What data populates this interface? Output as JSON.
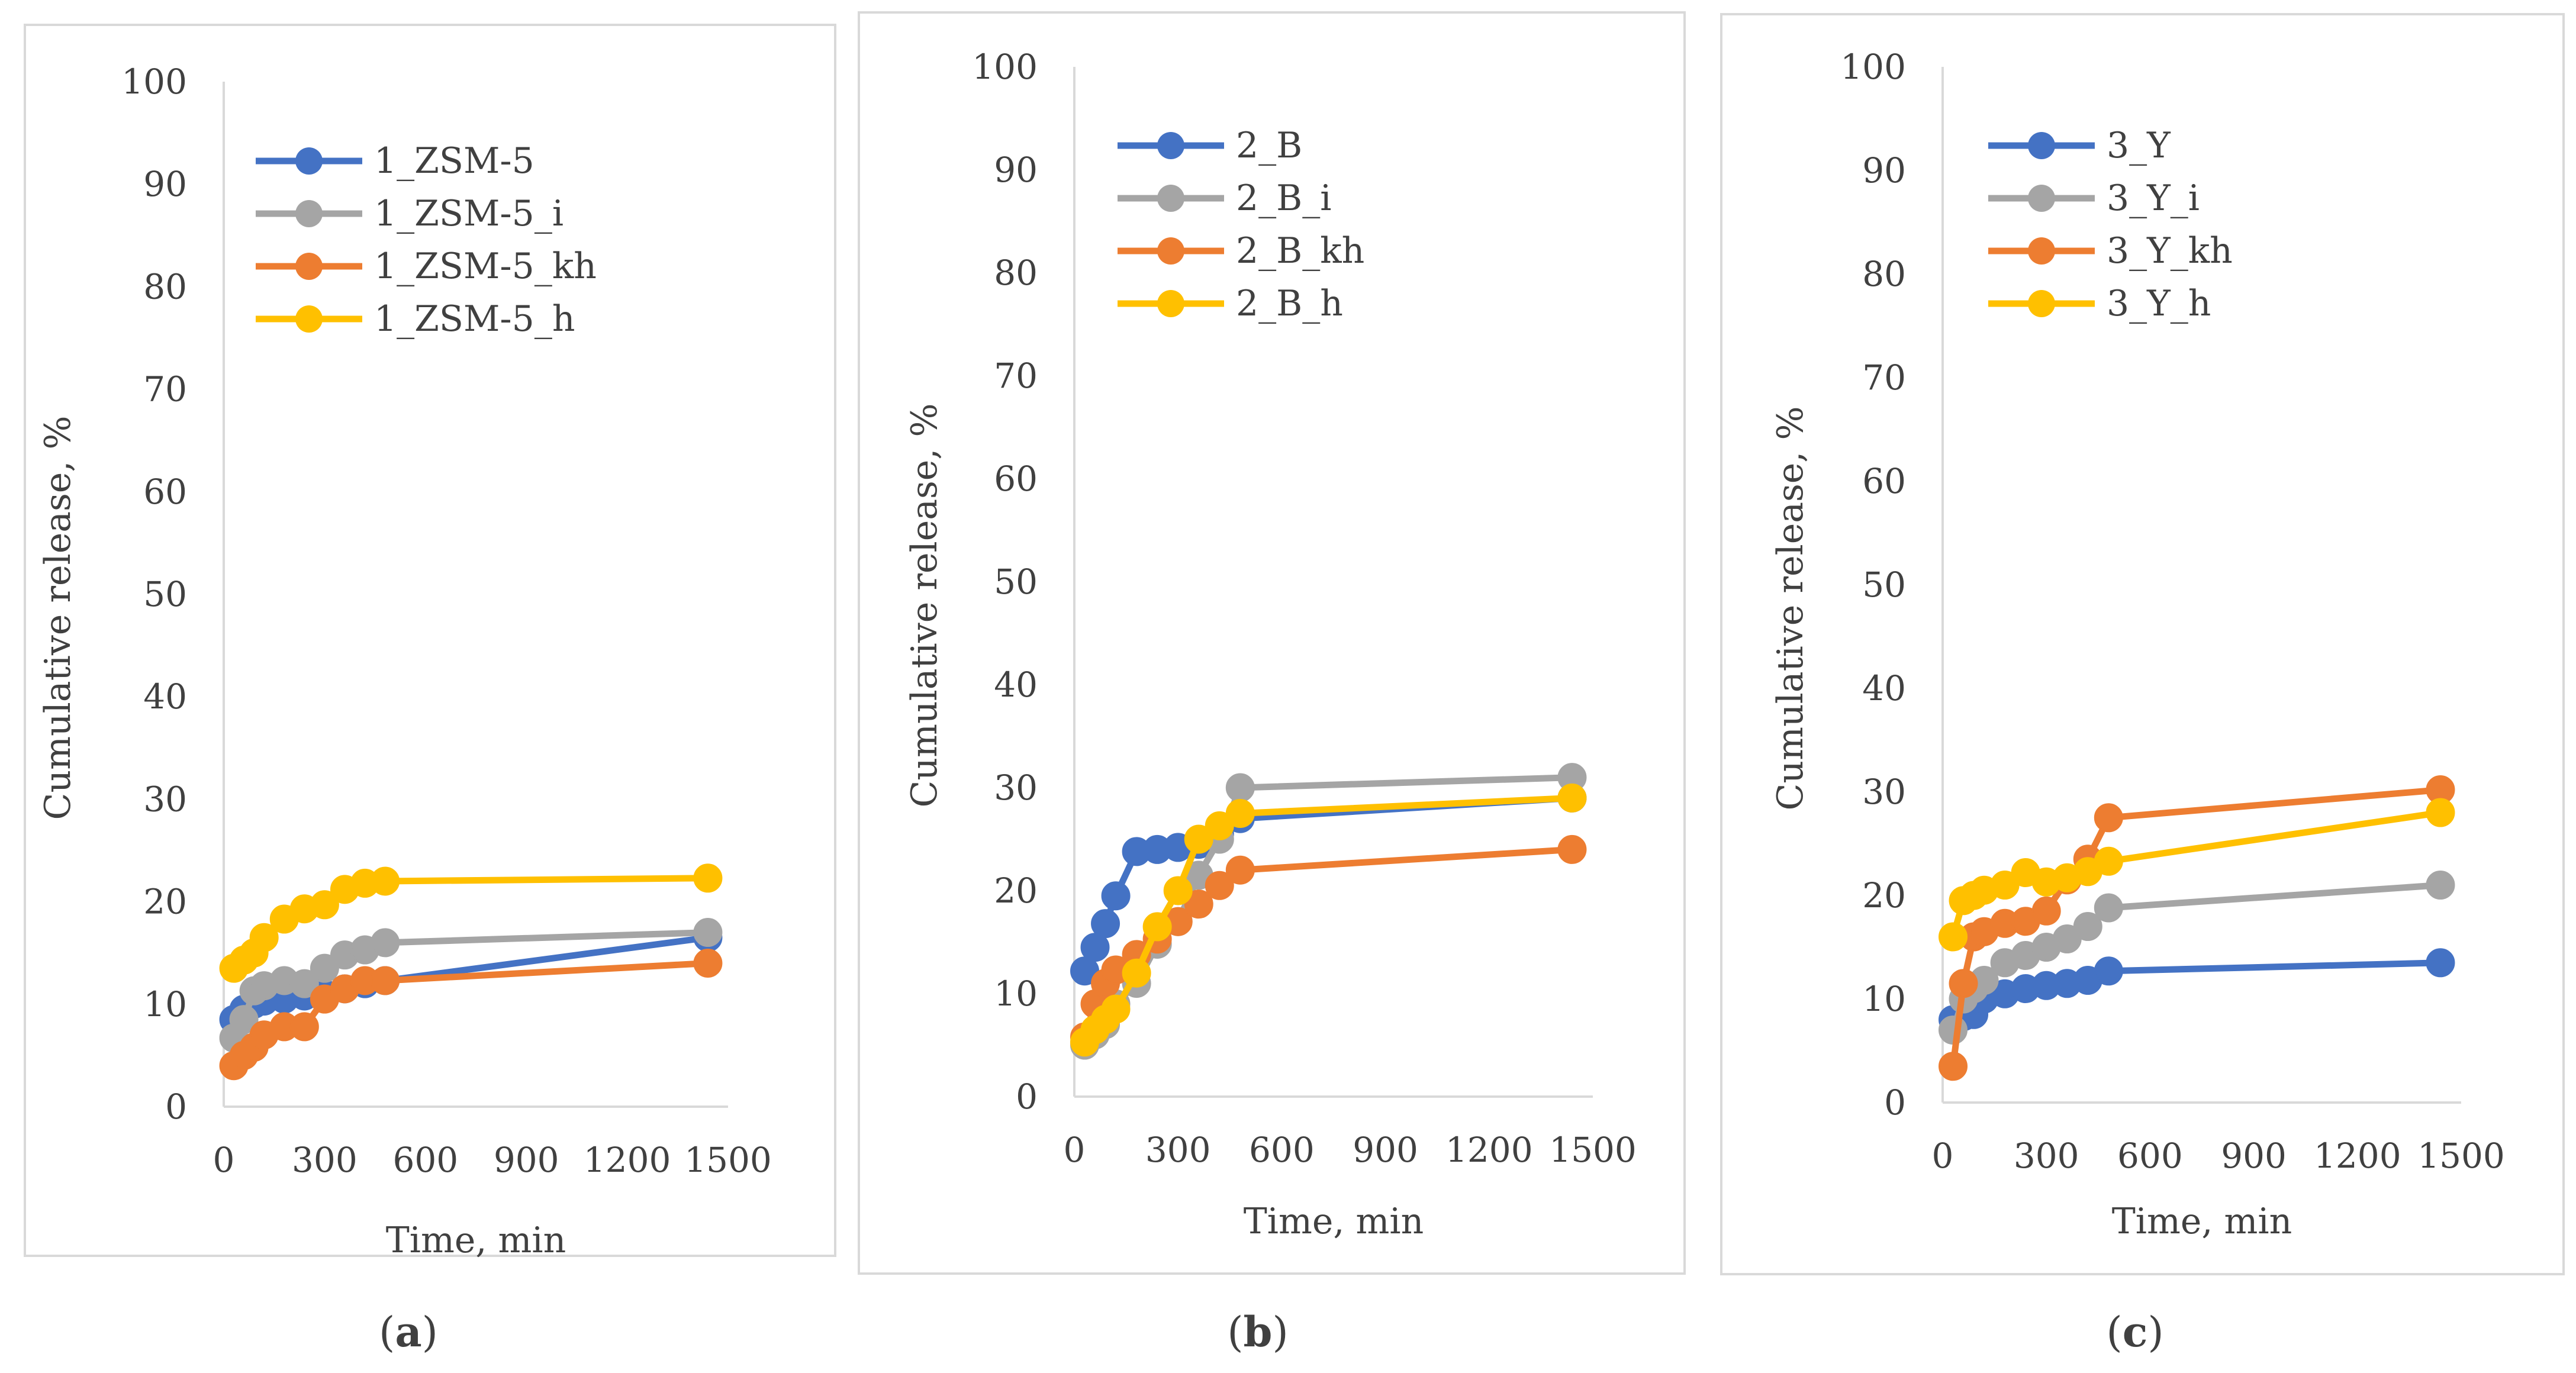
{
  "chart_data": [
    {
      "type": "line",
      "panel_label": "a",
      "title": "",
      "xlabel": "Time, min",
      "ylabel": "Cumulative release, %",
      "xlim": [
        0,
        1500
      ],
      "ylim": [
        0,
        100
      ],
      "x_ticks": [
        0,
        300,
        600,
        900,
        1200,
        1500
      ],
      "y_ticks": [
        0,
        10,
        20,
        30,
        40,
        50,
        60,
        70,
        80,
        90,
        100
      ],
      "legend_position": "top-left",
      "series": [
        {
          "name": "1_ZSM-5",
          "color": "#4472C4",
          "x": [
            30,
            60,
            90,
            120,
            180,
            240,
            300,
            360,
            420,
            480,
            1440
          ],
          "y": [
            8.5,
            9.5,
            10.0,
            10.3,
            10.5,
            10.8,
            11.0,
            11.5,
            12.0,
            12.3,
            16.5
          ]
        },
        {
          "name": "1_ZSM-5_i",
          "color": "#A5A5A5",
          "x": [
            30,
            60,
            90,
            120,
            180,
            240,
            300,
            360,
            420,
            480,
            1440
          ],
          "y": [
            6.7,
            8.5,
            11.3,
            11.8,
            12.3,
            12.0,
            13.5,
            14.8,
            15.3,
            16.0,
            17.0
          ]
        },
        {
          "name": "1_ZSM-5_kh",
          "color": "#ED7D31",
          "x": [
            30,
            60,
            90,
            120,
            180,
            240,
            300,
            360,
            420,
            480,
            1440
          ],
          "y": [
            4.0,
            5.0,
            5.8,
            7.0,
            7.8,
            7.8,
            10.5,
            11.5,
            12.3,
            12.3,
            14.0
          ]
        },
        {
          "name": "1_ZSM-5_h",
          "color": "#FFC000",
          "x": [
            30,
            60,
            90,
            120,
            180,
            240,
            300,
            360,
            420,
            480,
            1440
          ],
          "y": [
            13.5,
            14.3,
            15.0,
            16.5,
            18.3,
            19.3,
            19.7,
            21.2,
            21.8,
            22.0,
            22.3
          ]
        }
      ]
    },
    {
      "type": "line",
      "panel_label": "b",
      "title": "",
      "xlabel": "Time, min",
      "ylabel": "Cumulative release, %",
      "xlim": [
        0,
        1500
      ],
      "ylim": [
        0,
        100
      ],
      "x_ticks": [
        0,
        300,
        600,
        900,
        1200,
        1500
      ],
      "y_ticks": [
        0,
        10,
        20,
        30,
        40,
        50,
        60,
        70,
        80,
        90,
        100
      ],
      "legend_position": "top-left",
      "series": [
        {
          "name": "2_B",
          "color": "#4472C4",
          "x": [
            30,
            60,
            90,
            120,
            180,
            240,
            300,
            360,
            420,
            480,
            1440
          ],
          "y": [
            12.2,
            14.5,
            16.8,
            19.5,
            23.8,
            24.0,
            24.2,
            24.5,
            25.5,
            27.0,
            29.0
          ]
        },
        {
          "name": "2_B_i",
          "color": "#A5A5A5",
          "x": [
            30,
            60,
            90,
            120,
            180,
            240,
            300,
            360,
            420,
            480,
            1440
          ],
          "y": [
            5.0,
            6.0,
            7.0,
            9.0,
            11.0,
            14.8,
            17.0,
            21.5,
            25.0,
            30.0,
            31.0
          ]
        },
        {
          "name": "2_B_kh",
          "color": "#ED7D31",
          "x": [
            30,
            60,
            90,
            120,
            180,
            240,
            300,
            360,
            420,
            480,
            1440
          ],
          "y": [
            5.8,
            9.0,
            11.0,
            12.3,
            13.8,
            15.3,
            17.0,
            18.7,
            20.5,
            22.0,
            24.0
          ]
        },
        {
          "name": "2_B_h",
          "color": "#FFC000",
          "x": [
            30,
            60,
            90,
            120,
            180,
            240,
            300,
            360,
            420,
            480,
            1440
          ],
          "y": [
            5.3,
            6.5,
            7.5,
            8.5,
            12.0,
            16.5,
            20.0,
            25.0,
            26.3,
            27.5,
            29.0
          ]
        }
      ]
    },
    {
      "type": "line",
      "panel_label": "c",
      "title": "",
      "xlabel": "Time, min",
      "ylabel": "Cumulative release, %",
      "xlim": [
        0,
        1500
      ],
      "ylim": [
        0,
        100
      ],
      "x_ticks": [
        0,
        300,
        600,
        900,
        1200,
        1500
      ],
      "y_ticks": [
        0,
        10,
        20,
        30,
        40,
        50,
        60,
        70,
        80,
        90,
        100
      ],
      "legend_position": "top-left",
      "series": [
        {
          "name": "3_Y",
          "color": "#4472C4",
          "x": [
            30,
            60,
            90,
            120,
            180,
            240,
            300,
            360,
            420,
            480,
            1440
          ],
          "y": [
            8.0,
            8.3,
            8.5,
            10.0,
            10.5,
            11.0,
            11.3,
            11.5,
            11.8,
            12.7,
            13.5
          ]
        },
        {
          "name": "3_Y_i",
          "color": "#A5A5A5",
          "x": [
            30,
            60,
            90,
            120,
            180,
            240,
            300,
            360,
            420,
            480,
            1440
          ],
          "y": [
            7.0,
            10.0,
            11.0,
            11.8,
            13.5,
            14.2,
            15.0,
            15.8,
            17.0,
            18.8,
            21.0
          ]
        },
        {
          "name": "3_Y_kh",
          "color": "#ED7D31",
          "x": [
            30,
            60,
            90,
            120,
            180,
            240,
            300,
            360,
            420,
            480,
            1440
          ],
          "y": [
            3.5,
            11.5,
            16.0,
            16.5,
            17.3,
            17.5,
            18.5,
            21.5,
            23.5,
            27.5,
            30.2
          ]
        },
        {
          "name": "3_Y_h",
          "color": "#FFC000",
          "x": [
            30,
            60,
            90,
            120,
            180,
            240,
            300,
            360,
            420,
            480,
            1440
          ],
          "y": [
            16.0,
            19.5,
            20.0,
            20.5,
            21.0,
            22.2,
            21.3,
            21.7,
            22.3,
            23.3,
            28.0
          ]
        }
      ]
    }
  ],
  "captions": [
    "a",
    "b",
    "c"
  ]
}
